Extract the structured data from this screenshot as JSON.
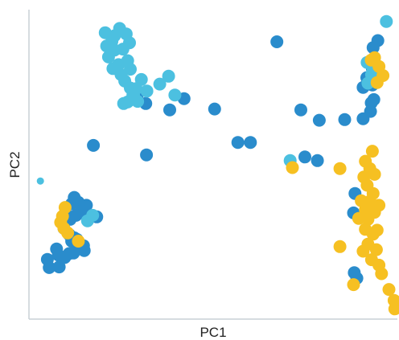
{
  "chart_data": {
    "type": "scatter",
    "title": "",
    "xlabel": "PC1",
    "ylabel": "PC2",
    "xlim": [
      0,
      100
    ],
    "ylim": [
      0,
      100
    ],
    "grid": false,
    "legend": "none",
    "colors": {
      "dark_blue": "#2a8ccc",
      "light_blue": "#4cc0e0",
      "yellow": "#f6c022"
    },
    "series": [
      {
        "color": "#2a8ccc",
        "points": [
          [
            67.3,
            90.2
          ],
          [
            91.7,
            78.4
          ],
          [
            90.7,
            75.2
          ],
          [
            93.2,
            76.0
          ],
          [
            93.4,
            88.3
          ],
          [
            94.7,
            90.6
          ],
          [
            93.2,
            81.4
          ],
          [
            93.6,
            71.2
          ],
          [
            92.9,
            70.1
          ],
          [
            92.7,
            67.3
          ],
          [
            90.7,
            64.9
          ],
          [
            73.8,
            67.8
          ],
          [
            78.8,
            64.4
          ],
          [
            85.7,
            64.6
          ],
          [
            50.4,
            68.1
          ],
          [
            56.7,
            57.1
          ],
          [
            60.1,
            57.1
          ],
          [
            74.9,
            52.3
          ],
          [
            78.3,
            51.1
          ],
          [
            29.3,
            72.2
          ],
          [
            31.7,
            69.9
          ],
          [
            38.2,
            67.8
          ],
          [
            42.1,
            71.5
          ],
          [
            17.5,
            56.1
          ],
          [
            31.9,
            53.0
          ],
          [
            12.3,
            39.0
          ],
          [
            11.6,
            36.9
          ],
          [
            13.4,
            37.4
          ],
          [
            15.6,
            36.4
          ],
          [
            14.3,
            34.6
          ],
          [
            16.4,
            32.3
          ],
          [
            12.8,
            33.1
          ],
          [
            11.2,
            31.8
          ],
          [
            10.0,
            33.6
          ],
          [
            9.1,
            30.8
          ],
          [
            9.5,
            28.8
          ],
          [
            10.9,
            26.8
          ],
          [
            12.3,
            25.7
          ],
          [
            13.0,
            25.2
          ],
          [
            14.8,
            23.1
          ],
          [
            13.2,
            22.0
          ],
          [
            15.0,
            21.5
          ],
          [
            12.1,
            20.7
          ],
          [
            10.9,
            20.5
          ],
          [
            9.7,
            19.2
          ],
          [
            7.5,
            22.0
          ],
          [
            8.0,
            20.0
          ],
          [
            5.0,
            18.6
          ],
          [
            5.5,
            15.9
          ],
          [
            8.2,
            16.1
          ],
          [
            18.4,
            32.6
          ],
          [
            88.5,
            40.3
          ],
          [
            88.1,
            33.9
          ],
          [
            88.3,
            14.2
          ],
          [
            89.0,
            12.4
          ],
          [
            11.6,
            24.6
          ]
        ]
      },
      {
        "color": "#4cc0e0",
        "points": [
          [
            97.0,
            96.9
          ],
          [
            93.4,
            81.1
          ],
          [
            93.0,
            79.4
          ],
          [
            91.8,
            83.4
          ],
          [
            92.0,
            76.6
          ],
          [
            20.7,
            93.2
          ],
          [
            22.5,
            90.4
          ],
          [
            23.2,
            92.2
          ],
          [
            24.6,
            94.6
          ],
          [
            26.4,
            92.8
          ],
          [
            27.3,
            89.9
          ],
          [
            25.5,
            87.8
          ],
          [
            23.2,
            87.5
          ],
          [
            21.1,
            88.8
          ],
          [
            21.6,
            85.2
          ],
          [
            24.3,
            82.7
          ],
          [
            26.8,
            84.0
          ],
          [
            27.5,
            81.2
          ],
          [
            25.0,
            79.4
          ],
          [
            22.8,
            81.4
          ],
          [
            26.0,
            77.3
          ],
          [
            27.5,
            75.0
          ],
          [
            29.1,
            74.8
          ],
          [
            30.5,
            77.8
          ],
          [
            28.4,
            72.7
          ],
          [
            26.8,
            70.4
          ],
          [
            29.5,
            70.6
          ],
          [
            32.0,
            74.0
          ],
          [
            35.5,
            76.3
          ],
          [
            37.9,
            78.9
          ],
          [
            39.6,
            72.7
          ],
          [
            25.7,
            69.9
          ],
          [
            28.2,
            72.7
          ],
          [
            70.9,
            51.1
          ],
          [
            17.3,
            33.1
          ],
          [
            15.9,
            31.3
          ],
          [
            3.1,
            44.4
          ]
        ]
      },
      {
        "color": "#f6c022",
        "points": [
          [
            95.0,
            82.1
          ],
          [
            93.8,
            85.0
          ],
          [
            96.1,
            79.1
          ],
          [
            94.5,
            76.8
          ],
          [
            92.9,
            84.2
          ],
          [
            9.8,
            35.7
          ],
          [
            9.1,
            32.8
          ],
          [
            8.6,
            30.8
          ],
          [
            9.5,
            28.8
          ],
          [
            10.5,
            27.3
          ],
          [
            13.4,
            24.6
          ],
          [
            71.5,
            48.8
          ],
          [
            84.4,
            48.5
          ],
          [
            93.2,
            54.2
          ],
          [
            91.3,
            50.9
          ],
          [
            92.5,
            48.5
          ],
          [
            90.9,
            45.7
          ],
          [
            93.8,
            46.6
          ],
          [
            91.8,
            43.0
          ],
          [
            93.4,
            40.3
          ],
          [
            90.2,
            37.9
          ],
          [
            92.5,
            37.7
          ],
          [
            91.3,
            34.9
          ],
          [
            93.8,
            34.1
          ],
          [
            95.0,
            36.4
          ],
          [
            89.5,
            32.1
          ],
          [
            92.0,
            31.8
          ],
          [
            91.3,
            28.5
          ],
          [
            93.4,
            26.9
          ],
          [
            94.5,
            28.2
          ],
          [
            92.0,
            23.6
          ],
          [
            94.3,
            21.8
          ],
          [
            90.7,
            21.3
          ],
          [
            84.4,
            22.8
          ],
          [
            93.0,
            18.5
          ],
          [
            95.0,
            16.7
          ],
          [
            95.7,
            13.9
          ],
          [
            88.1,
            10.3
          ],
          [
            97.7,
            8.7
          ],
          [
            99.1,
            5.1
          ],
          [
            99.3,
            2.3
          ]
        ]
      }
    ]
  }
}
